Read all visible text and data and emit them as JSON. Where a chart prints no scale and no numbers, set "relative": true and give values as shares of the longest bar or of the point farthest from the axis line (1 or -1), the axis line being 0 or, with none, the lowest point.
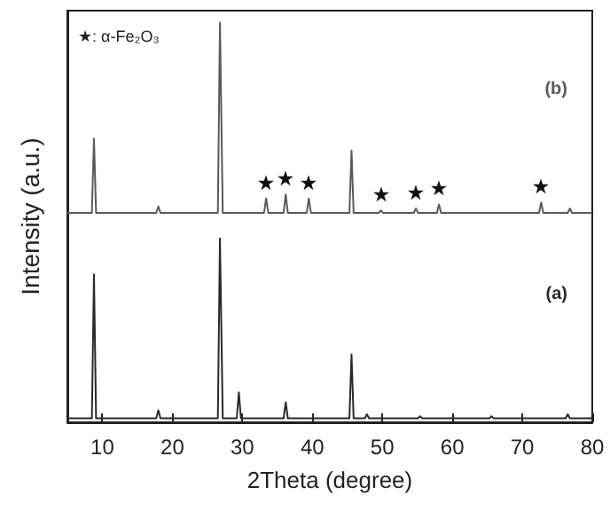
{
  "chart_data": {
    "type": "line",
    "relative": true,
    "xlabel": "2Theta (degree)",
    "ylabel": "Intensity (a.u.)",
    "xlim": [
      5,
      80
    ],
    "xticks": [
      10,
      20,
      30,
      40,
      50,
      60,
      70,
      80
    ],
    "grid": false,
    "marker": "none",
    "line_style": "solid",
    "series": [
      {
        "name": "(a)",
        "color": "#2a2a2a",
        "x": [
          5,
          8.5,
          8.8,
          9.1,
          17.7,
          18,
          18.3,
          26.5,
          26.8,
          27.2,
          29.2,
          29.5,
          29.8,
          35.9,
          36.2,
          36.5,
          45.3,
          45.6,
          45.9,
          47.5,
          47.8,
          48.1,
          55.1,
          55.4,
          55.7,
          65.3,
          65.6,
          65.9,
          76.2,
          76.5,
          76.8,
          80
        ],
        "values": [
          0.01,
          0.01,
          0.37,
          0.01,
          0.01,
          0.03,
          0.01,
          0.01,
          0.46,
          0.01,
          0.01,
          0.075,
          0.01,
          0.01,
          0.05,
          0.01,
          0.01,
          0.17,
          0.01,
          0.01,
          0.02,
          0.01,
          0.01,
          0.015,
          0.01,
          0.01,
          0.015,
          0.01,
          0.01,
          0.02,
          0.01,
          0.01
        ]
      },
      {
        "name": "(b)",
        "color": "#5a5a5a",
        "x": [
          5,
          8.5,
          8.8,
          9.1,
          17.7,
          18,
          18.3,
          26.5,
          26.8,
          27.2,
          33.1,
          33.4,
          33.7,
          35.9,
          36.2,
          36.5,
          39.2,
          39.5,
          39.8,
          45.3,
          45.6,
          45.9,
          49.5,
          49.8,
          50.1,
          54.5,
          54.8,
          55.1,
          57.8,
          58.1,
          58.4,
          72.4,
          72.7,
          73,
          76.5,
          76.8,
          77.1,
          80
        ],
        "values": [
          0.524,
          0.524,
          0.71,
          0.524,
          0.524,
          0.54,
          0.524,
          0.524,
          1,
          0.524,
          0.524,
          0.56,
          0.524,
          0.524,
          0.57,
          0.524,
          0.524,
          0.56,
          0.524,
          0.524,
          0.68,
          0.524,
          0.524,
          0.53,
          0.524,
          0.524,
          0.535,
          0.524,
          0.524,
          0.545,
          0.524,
          0.524,
          0.55,
          0.524,
          0.524,
          0.535,
          0.524,
          0.524
        ]
      }
    ],
    "annotations": [
      "★: α-Fe₂O₃",
      {
        "text": "★",
        "x": 33.4,
        "y": 0.56
      },
      {
        "text": "★",
        "x": 36.2,
        "y": 0.57
      },
      {
        "text": "★",
        "x": 39.5,
        "y": 0.56
      },
      {
        "text": "★",
        "x": 49.8,
        "y": 0.53
      },
      {
        "text": "★",
        "x": 54.8,
        "y": 0.535
      },
      {
        "text": "★",
        "x": 58.1,
        "y": 0.545
      },
      {
        "text": "★",
        "x": 72.7,
        "y": 0.55
      }
    ]
  }
}
